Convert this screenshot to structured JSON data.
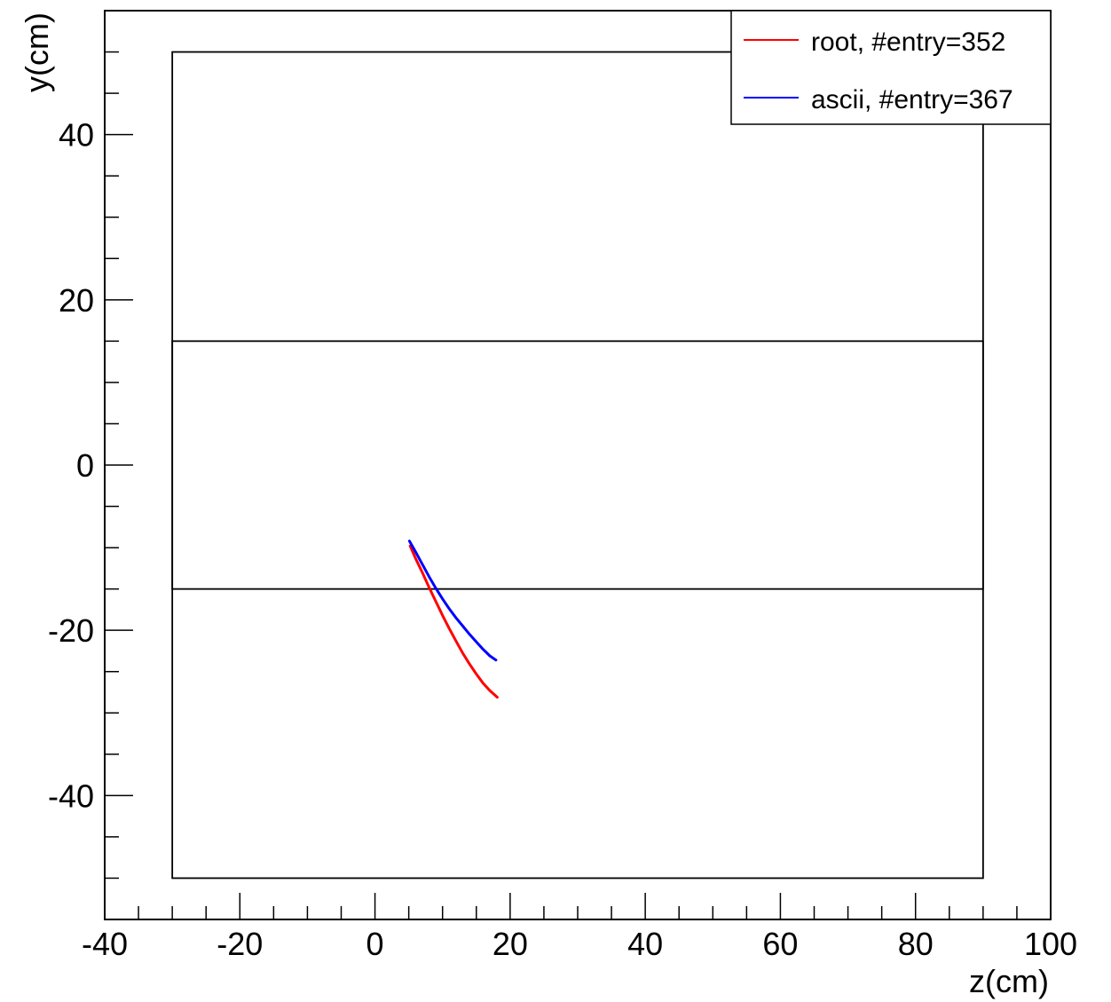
{
  "chart_data": {
    "type": "line",
    "xlabel": "z(cm)",
    "ylabel": "y(cm)",
    "xlim": [
      -40,
      100
    ],
    "ylim": [
      -55,
      55
    ],
    "x_ticks": [
      -40,
      -20,
      0,
      20,
      40,
      60,
      80,
      100
    ],
    "y_ticks": [
      -40,
      -20,
      0,
      20,
      40
    ],
    "x_tick_labels": [
      "-40",
      "-20",
      "0",
      "20",
      "40",
      "60",
      "80",
      "100"
    ],
    "y_tick_labels": [
      "-40",
      "-20",
      "0",
      "20",
      "40"
    ],
    "x_minor_step": 5,
    "y_minor_step": 5,
    "legend_position": "top-right",
    "boxes": [
      {
        "z0": -30,
        "z1": 90,
        "y0": -50,
        "y1": 50
      },
      {
        "z0": -30,
        "z1": 90,
        "y0": -15,
        "y1": 15
      }
    ],
    "series": [
      {
        "name": "root, #entry=352",
        "color": "#ff0000",
        "x": [
          5.2,
          6,
          7,
          8,
          9,
          10,
          11,
          12,
          13,
          14,
          15,
          16,
          17,
          18.1
        ],
        "y": [
          -9.8,
          -11.3,
          -13.0,
          -14.8,
          -16.5,
          -18.2,
          -19.8,
          -21.3,
          -22.8,
          -24.1,
          -25.3,
          -26.4,
          -27.3,
          -28.1
        ]
      },
      {
        "name": "ascii, #entry=367",
        "color": "#0000ff",
        "x": [
          5.1,
          6,
          7,
          8,
          9,
          10,
          11,
          12,
          13,
          14,
          15,
          16,
          17,
          17.9
        ],
        "y": [
          -9.2,
          -10.5,
          -12.0,
          -13.5,
          -14.9,
          -16.2,
          -17.4,
          -18.5,
          -19.5,
          -20.5,
          -21.4,
          -22.3,
          -23.1,
          -23.6
        ]
      }
    ]
  }
}
